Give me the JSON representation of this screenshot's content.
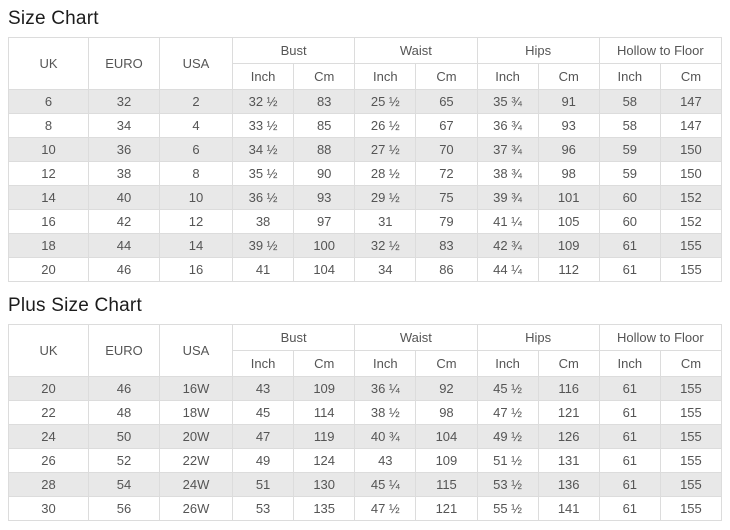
{
  "titles": {
    "size_chart": "Size Chart",
    "plus_size_chart": "Plus Size Chart"
  },
  "headers": {
    "uk": "UK",
    "euro": "EURO",
    "usa": "USA",
    "bust": "Bust",
    "waist": "Waist",
    "hips": "Hips",
    "hollow_to_floor": "Hollow to Floor",
    "inch": "Inch",
    "cm": "Cm"
  },
  "size_chart": {
    "columns": [
      "UK",
      "EURO",
      "USA",
      "Bust Inch",
      "Bust Cm",
      "Waist Inch",
      "Waist Cm",
      "Hips Inch",
      "Hips Cm",
      "Hollow to Floor Inch",
      "Hollow to Floor Cm"
    ],
    "rows": [
      [
        "6",
        "32",
        "2",
        "32 ½",
        "83",
        "25 ½",
        "65",
        "35 ¾",
        "91",
        "58",
        "147"
      ],
      [
        "8",
        "34",
        "4",
        "33 ½",
        "85",
        "26 ½",
        "67",
        "36 ¾",
        "93",
        "58",
        "147"
      ],
      [
        "10",
        "36",
        "6",
        "34 ½",
        "88",
        "27 ½",
        "70",
        "37 ¾",
        "96",
        "59",
        "150"
      ],
      [
        "12",
        "38",
        "8",
        "35 ½",
        "90",
        "28 ½",
        "72",
        "38 ¾",
        "98",
        "59",
        "150"
      ],
      [
        "14",
        "40",
        "10",
        "36 ½",
        "93",
        "29 ½",
        "75",
        "39 ¾",
        "101",
        "60",
        "152"
      ],
      [
        "16",
        "42",
        "12",
        "38",
        "97",
        "31",
        "79",
        "41 ¼",
        "105",
        "60",
        "152"
      ],
      [
        "18",
        "44",
        "14",
        "39 ½",
        "100",
        "32 ½",
        "83",
        "42 ¾",
        "109",
        "61",
        "155"
      ],
      [
        "20",
        "46",
        "16",
        "41",
        "104",
        "34",
        "86",
        "44 ¼",
        "112",
        "61",
        "155"
      ]
    ]
  },
  "plus_size_chart": {
    "columns": [
      "UK",
      "EURO",
      "USA",
      "Bust Inch",
      "Bust Cm",
      "Waist Inch",
      "Waist Cm",
      "Hips Inch",
      "Hips Cm",
      "Hollow to Floor Inch",
      "Hollow to Floor Cm"
    ],
    "rows": [
      [
        "20",
        "46",
        "16W",
        "43",
        "109",
        "36 ¼",
        "92",
        "45 ½",
        "116",
        "61",
        "155"
      ],
      [
        "22",
        "48",
        "18W",
        "45",
        "114",
        "38 ½",
        "98",
        "47 ½",
        "121",
        "61",
        "155"
      ],
      [
        "24",
        "50",
        "20W",
        "47",
        "119",
        "40 ¾",
        "104",
        "49 ½",
        "126",
        "61",
        "155"
      ],
      [
        "26",
        "52",
        "22W",
        "49",
        "124",
        "43",
        "109",
        "51 ½",
        "131",
        "61",
        "155"
      ],
      [
        "28",
        "54",
        "24W",
        "51",
        "130",
        "45 ¼",
        "115",
        "53 ½",
        "136",
        "61",
        "155"
      ],
      [
        "30",
        "56",
        "26W",
        "53",
        "135",
        "47 ½",
        "121",
        "55 ½",
        "141",
        "61",
        "155"
      ]
    ]
  },
  "colors": {
    "stripe_row": "#e8e8e8",
    "border": "#dcdcdc",
    "text": "#555555",
    "title_text": "#1c1c1c",
    "background": "#ffffff"
  }
}
